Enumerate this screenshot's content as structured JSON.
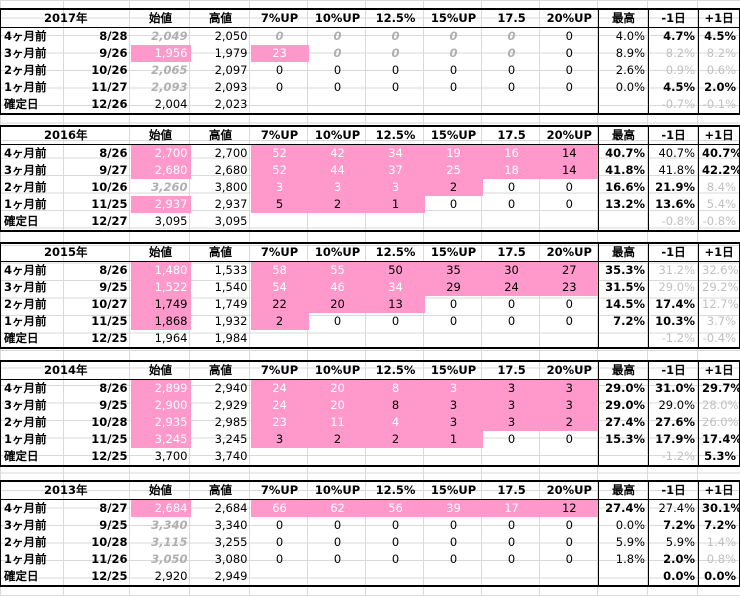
{
  "headers": [
    "始値",
    "高値",
    "7%UP",
    "10%UP",
    "12.5%",
    "15%UP",
    "17.5",
    "20%UP",
    "最高",
    "-1日",
    "+1日"
  ],
  "pink_color": "#ff99cc",
  "blocks": [
    {
      "year": "2017年",
      "rows": [
        {
          "label": "4ヶ月前",
          "date": "8/28",
          "cells": [
            "2,049",
            "2,050",
            "0",
            "0",
            "0",
            "0",
            "0",
            "0",
            "4.0%",
            "4.7%",
            "4.5%"
          ],
          "style": [
            "grayit",
            "",
            "grayit",
            "grayit",
            "grayit",
            "grayit",
            "grayit",
            "",
            "",
            "bold",
            "bold"
          ]
        },
        {
          "label": "3ヶ月前",
          "date": "9/26",
          "cells": [
            "1,956",
            "1,979",
            "23",
            "0",
            "0",
            "0",
            "0",
            "0",
            "8.9%",
            "8.2%",
            "8.2%"
          ],
          "style": [
            "pink",
            "",
            "pink",
            "grayit",
            "grayit",
            "grayit",
            "grayit",
            "",
            "",
            "gray",
            "gray"
          ]
        },
        {
          "label": "2ヶ月前",
          "date": "10/26",
          "cells": [
            "2,065",
            "2,097",
            "0",
            "0",
            "0",
            "0",
            "0",
            "0",
            "2.6%",
            "0.9%",
            "0.6%"
          ],
          "style": [
            "grayit",
            "",
            "",
            "",
            "",
            "",
            "",
            "",
            "",
            "gray",
            "gray"
          ]
        },
        {
          "label": "1ヶ月前",
          "date": "11/27",
          "cells": [
            "2,093",
            "2,093",
            "0",
            "0",
            "0",
            "0",
            "0",
            "0",
            "0.0%",
            "4.5%",
            "2.0%"
          ],
          "style": [
            "grayit",
            "",
            "",
            "",
            "",
            "",
            "",
            "",
            "",
            "bold",
            "bold"
          ]
        },
        {
          "label": "確定日",
          "date": "12/26",
          "cells": [
            "2,004",
            "2,023",
            "",
            "",
            "",
            "",
            "",
            "",
            "",
            "-0.7%",
            "-0.1%"
          ],
          "style": [
            "",
            "",
            "",
            "",
            "",
            "",
            "",
            "",
            "",
            "gray",
            "gray"
          ]
        }
      ]
    },
    {
      "year": "2016年",
      "rows": [
        {
          "label": "4ヶ月前",
          "date": "8/26",
          "cells": [
            "2,700",
            "2,700",
            "52",
            "42",
            "34",
            "19",
            "16",
            "14",
            "40.7%",
            "40.7%",
            "40.7%"
          ],
          "style": [
            "pink",
            "",
            "pink",
            "pink",
            "pink",
            "pink",
            "pink",
            "pinkblk",
            "bold",
            "",
            "bold"
          ]
        },
        {
          "label": "3ヶ月前",
          "date": "9/27",
          "cells": [
            "2,680",
            "2,680",
            "52",
            "44",
            "37",
            "25",
            "18",
            "14",
            "41.8%",
            "41.8%",
            "42.2%"
          ],
          "style": [
            "pink",
            "",
            "pink",
            "pink",
            "pink",
            "pink",
            "pink",
            "pinkblk",
            "bold",
            "",
            "bold"
          ]
        },
        {
          "label": "2ヶ月前",
          "date": "10/26",
          "cells": [
            "3,260",
            "3,800",
            "3",
            "3",
            "3",
            "2",
            "0",
            "0",
            "16.6%",
            "21.9%",
            "8.4%"
          ],
          "style": [
            "grayit",
            "",
            "pink",
            "pink",
            "pink",
            "pinkblk",
            "",
            "",
            "bold",
            "bold",
            "gray"
          ]
        },
        {
          "label": "1ヶ月前",
          "date": "11/25",
          "cells": [
            "2,937",
            "2,937",
            "5",
            "2",
            "1",
            "0",
            "0",
            "0",
            "13.2%",
            "13.6%",
            "5.4%"
          ],
          "style": [
            "pink",
            "",
            "pinkblk",
            "pinkblk",
            "pinkblk",
            "",
            "",
            "",
            "bold",
            "bold",
            "gray"
          ]
        },
        {
          "label": "確定日",
          "date": "12/27",
          "cells": [
            "3,095",
            "3,095",
            "",
            "",
            "",
            "",
            "",
            "",
            "",
            "-0.8%",
            "-0.8%"
          ],
          "style": [
            "",
            "",
            "",
            "",
            "",
            "",
            "",
            "",
            "",
            "gray",
            "gray"
          ]
        }
      ]
    },
    {
      "year": "2015年",
      "rows": [
        {
          "label": "4ヶ月前",
          "date": "8/26",
          "cells": [
            "1,480",
            "1,533",
            "58",
            "55",
            "50",
            "35",
            "30",
            "27",
            "35.3%",
            "31.2%",
            "32.6%"
          ],
          "style": [
            "pink",
            "",
            "pink",
            "pink",
            "pinkblk",
            "pinkblk",
            "pinkblk",
            "pinkblk",
            "bold",
            "gray",
            "gray"
          ]
        },
        {
          "label": "3ヶ月前",
          "date": "9/25",
          "cells": [
            "1,522",
            "1,540",
            "54",
            "46",
            "34",
            "29",
            "24",
            "23",
            "31.5%",
            "29.0%",
            "29.2%"
          ],
          "style": [
            "pink",
            "",
            "pink",
            "pink",
            "pink",
            "pinkblk",
            "pinkblk",
            "pinkblk",
            "bold",
            "gray",
            "gray"
          ]
        },
        {
          "label": "2ヶ月前",
          "date": "10/27",
          "cells": [
            "1,749",
            "1,749",
            "22",
            "20",
            "13",
            "0",
            "0",
            "0",
            "14.5%",
            "17.4%",
            "12.7%"
          ],
          "style": [
            "pinkblk",
            "",
            "pinkblk",
            "pinkblk",
            "pinkblk",
            "",
            "",
            "",
            "bold",
            "bold",
            "gray"
          ]
        },
        {
          "label": "1ヶ月前",
          "date": "11/25",
          "cells": [
            "1,868",
            "1,932",
            "2",
            "0",
            "0",
            "0",
            "0",
            "0",
            "7.2%",
            "10.3%",
            "3.7%"
          ],
          "style": [
            "pinkblk",
            "",
            "pinkblk",
            "",
            "",
            "",
            "",
            "",
            "bold",
            "bold",
            "gray"
          ]
        },
        {
          "label": "確定日",
          "date": "12/25",
          "cells": [
            "1,964",
            "1,984",
            "",
            "",
            "",
            "",
            "",
            "",
            "",
            "-1.2%",
            "-0.4%"
          ],
          "style": [
            "",
            "",
            "",
            "",
            "",
            "",
            "",
            "",
            "",
            "gray",
            "gray"
          ]
        }
      ]
    },
    {
      "year": "2014年",
      "rows": [
        {
          "label": "4ヶ月前",
          "date": "8/26",
          "cells": [
            "2,899",
            "2,940",
            "24",
            "20",
            "8",
            "3",
            "3",
            "3",
            "29.0%",
            "31.0%",
            "29.7%"
          ],
          "style": [
            "pink",
            "",
            "pink",
            "pink",
            "pink",
            "pink",
            "pinkblk",
            "pinkblk",
            "bold",
            "bold",
            "bold"
          ]
        },
        {
          "label": "3ヶ月前",
          "date": "9/25",
          "cells": [
            "2,900",
            "2,929",
            "24",
            "20",
            "8",
            "3",
            "3",
            "3",
            "29.0%",
            "29.0%",
            "28.0%"
          ],
          "style": [
            "pink",
            "",
            "pink",
            "pink",
            "pinkblk",
            "pinkblk",
            "pinkblk",
            "pinkblk",
            "bold",
            "",
            "gray"
          ]
        },
        {
          "label": "2ヶ月前",
          "date": "10/28",
          "cells": [
            "2,935",
            "2,985",
            "23",
            "11",
            "4",
            "3",
            "3",
            "2",
            "27.4%",
            "27.6%",
            "26.0%"
          ],
          "style": [
            "pink",
            "",
            "pink",
            "pink",
            "pink",
            "pinkblk",
            "pinkblk",
            "pinkblk",
            "bold",
            "bold",
            "gray"
          ]
        },
        {
          "label": "1ヶ月前",
          "date": "11/25",
          "cells": [
            "3,245",
            "3,245",
            "3",
            "2",
            "2",
            "1",
            "0",
            "0",
            "15.3%",
            "17.9%",
            "17.4%"
          ],
          "style": [
            "pink",
            "",
            "pinkblk",
            "pinkblk",
            "pinkblk",
            "pinkblk",
            "",
            "",
            "bold",
            "bold",
            "bold"
          ]
        },
        {
          "label": "確定日",
          "date": "12/25",
          "cells": [
            "3,700",
            "3,740",
            "",
            "",
            "",
            "",
            "",
            "",
            "",
            "-1.2%",
            "5.3%"
          ],
          "style": [
            "",
            "",
            "",
            "",
            "",
            "",
            "",
            "",
            "",
            "gray",
            "bold"
          ]
        }
      ]
    },
    {
      "year": "2013年",
      "rows": [
        {
          "label": "4ヶ月前",
          "date": "8/27",
          "cells": [
            "2,684",
            "2,684",
            "66",
            "62",
            "56",
            "39",
            "17",
            "12",
            "27.4%",
            "27.4%",
            "30.1%"
          ],
          "style": [
            "pink",
            "",
            "pink",
            "pink",
            "pink",
            "pink",
            "pink",
            "pinkblk",
            "bold",
            "",
            "bold"
          ]
        },
        {
          "label": "3ヶ月前",
          "date": "9/25",
          "cells": [
            "3,340",
            "3,340",
            "0",
            "0",
            "0",
            "0",
            "0",
            "0",
            "0.0%",
            "7.2%",
            "7.2%"
          ],
          "style": [
            "grayit",
            "",
            "",
            "",
            "",
            "",
            "",
            "",
            "",
            "bold",
            "bold"
          ]
        },
        {
          "label": "2ヶ月前",
          "date": "10/28",
          "cells": [
            "3,115",
            "3,255",
            "0",
            "0",
            "0",
            "0",
            "0",
            "0",
            "5.9%",
            "5.9%",
            "1.4%"
          ],
          "style": [
            "grayit",
            "",
            "",
            "",
            "",
            "",
            "",
            "",
            "",
            "",
            "gray"
          ]
        },
        {
          "label": "1ヶ月前",
          "date": "11/26",
          "cells": [
            "3,050",
            "3,080",
            "0",
            "0",
            "0",
            "0",
            "0",
            "0",
            "1.8%",
            "2.0%",
            "0.8%"
          ],
          "style": [
            "grayit",
            "",
            "",
            "",
            "",
            "",
            "",
            "",
            "",
            "bold",
            "gray"
          ]
        },
        {
          "label": "確定日",
          "date": "12/25",
          "cells": [
            "2,920",
            "2,949",
            "",
            "",
            "",
            "",
            "",
            "",
            "",
            "0.0%",
            "0.0%"
          ],
          "style": [
            "",
            "",
            "",
            "",
            "",
            "",
            "",
            "",
            "",
            "bold",
            "bold"
          ]
        }
      ]
    }
  ]
}
